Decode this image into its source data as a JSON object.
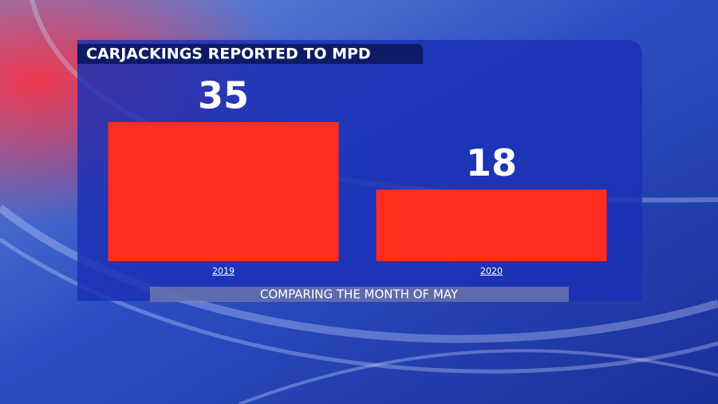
{
  "chart_data": {
    "type": "bar",
    "title": "CARJACKINGS REPORTED TO MPD",
    "categories": [
      "2019",
      "2020"
    ],
    "values": [
      35,
      18
    ],
    "color": "#ff2d1f",
    "footnote": "COMPARING THE MONTH OF MAY"
  }
}
